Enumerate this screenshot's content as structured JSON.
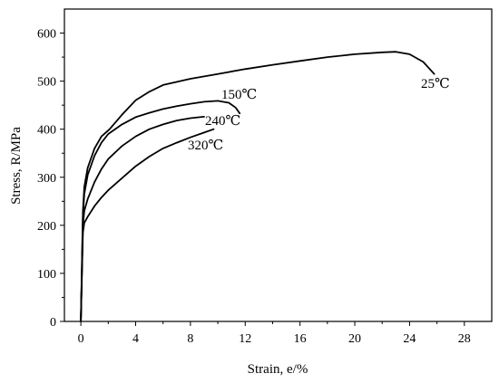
{
  "chart_data": {
    "type": "line",
    "xlabel": "Strain, e/%",
    "ylabel": "Stress, R/MPa",
    "xlim": [
      -1.2,
      30
    ],
    "ylim": [
      0,
      650
    ],
    "xticks": [
      0,
      4,
      8,
      12,
      16,
      20,
      24,
      28
    ],
    "yticks": [
      0,
      100,
      200,
      300,
      400,
      500,
      600
    ],
    "series": [
      {
        "name": "25℃",
        "points": [
          [
            0,
            0
          ],
          [
            0.08,
            120
          ],
          [
            0.15,
            230
          ],
          [
            0.25,
            280
          ],
          [
            0.5,
            320
          ],
          [
            1,
            360
          ],
          [
            1.5,
            385
          ],
          [
            2.1,
            400
          ],
          [
            3,
            430
          ],
          [
            4,
            460
          ],
          [
            5,
            478
          ],
          [
            6,
            492
          ],
          [
            8,
            505
          ],
          [
            10,
            515
          ],
          [
            12,
            525
          ],
          [
            14,
            534
          ],
          [
            16,
            542
          ],
          [
            18,
            550
          ],
          [
            20,
            556
          ],
          [
            22,
            560
          ],
          [
            23,
            561
          ],
          [
            24,
            556
          ],
          [
            25,
            540
          ],
          [
            25.8,
            515
          ]
        ]
      },
      {
        "name": "150℃",
        "points": [
          [
            0,
            0
          ],
          [
            0.08,
            110
          ],
          [
            0.15,
            220
          ],
          [
            0.25,
            265
          ],
          [
            0.5,
            305
          ],
          [
            1,
            345
          ],
          [
            1.5,
            372
          ],
          [
            2,
            390
          ],
          [
            3,
            410
          ],
          [
            4,
            425
          ],
          [
            5,
            434
          ],
          [
            6,
            442
          ],
          [
            7,
            448
          ],
          [
            8,
            453
          ],
          [
            9,
            457
          ],
          [
            10,
            459
          ],
          [
            10.8,
            455
          ],
          [
            11.3,
            445
          ],
          [
            11.6,
            433
          ]
        ]
      },
      {
        "name": "240℃",
        "points": [
          [
            0,
            0
          ],
          [
            0.08,
            105
          ],
          [
            0.15,
            200
          ],
          [
            0.25,
            230
          ],
          [
            0.5,
            255
          ],
          [
            1,
            290
          ],
          [
            1.5,
            317
          ],
          [
            2,
            338
          ],
          [
            3,
            365
          ],
          [
            4,
            385
          ],
          [
            5,
            400
          ],
          [
            6,
            410
          ],
          [
            7,
            418
          ],
          [
            8,
            423
          ],
          [
            9,
            426
          ]
        ]
      },
      {
        "name": "320℃",
        "points": [
          [
            0,
            0
          ],
          [
            0.08,
            100
          ],
          [
            0.15,
            185
          ],
          [
            0.25,
            205
          ],
          [
            0.5,
            218
          ],
          [
            1,
            240
          ],
          [
            1.5,
            258
          ],
          [
            2,
            273
          ],
          [
            3,
            298
          ],
          [
            4,
            323
          ],
          [
            5,
            343
          ],
          [
            6,
            360
          ],
          [
            7,
            372
          ],
          [
            8,
            383
          ],
          [
            9,
            393
          ],
          [
            9.7,
            400
          ]
        ]
      }
    ],
    "grid": false,
    "legend": "none"
  }
}
